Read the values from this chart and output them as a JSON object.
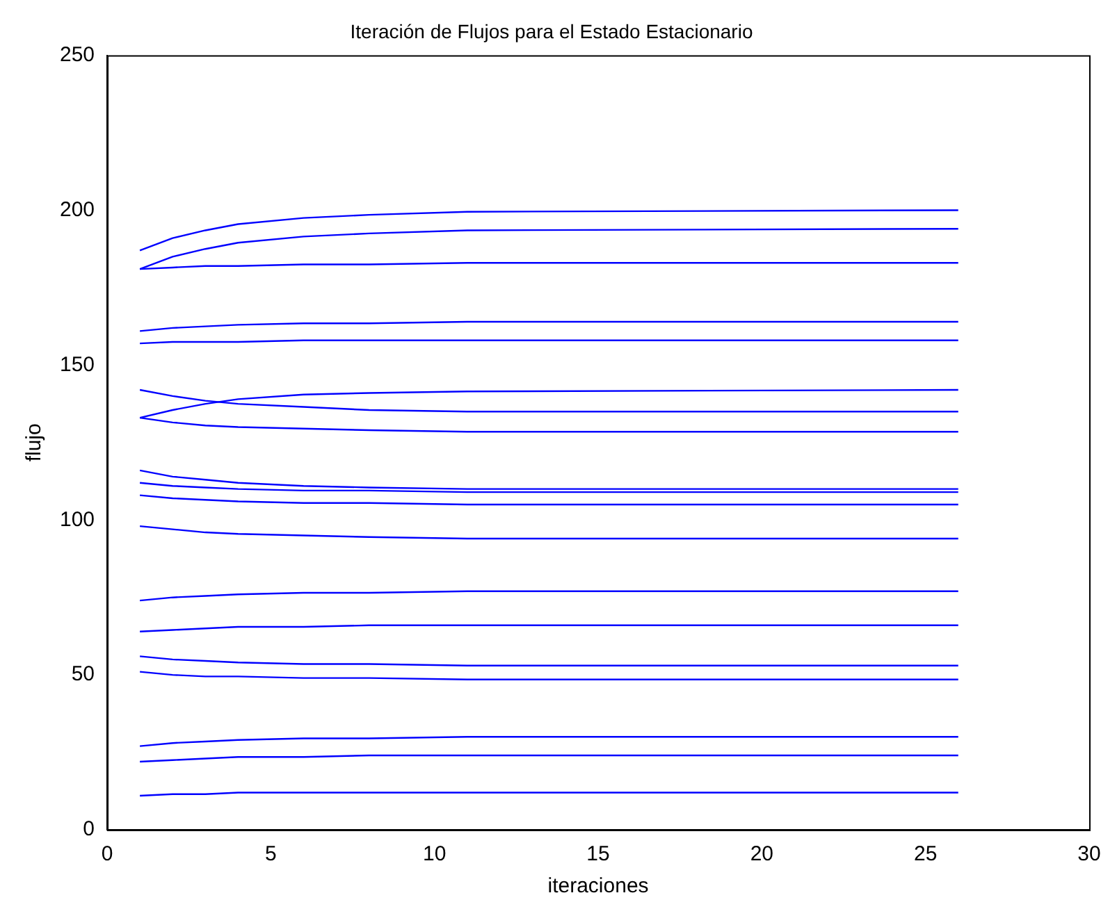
{
  "chart_data": {
    "type": "line",
    "title": "Iteración de Flujos para el Estado Estacionario",
    "xlabel": "iteraciones",
    "ylabel": "flujo",
    "x": [
      1,
      2,
      3,
      4,
      6,
      8,
      11,
      26
    ],
    "xlim": [
      0,
      30
    ],
    "xticks": [
      0,
      5,
      10,
      15,
      20,
      25,
      30
    ],
    "ylim": [
      0,
      250
    ],
    "yticks": [
      0,
      50,
      100,
      150,
      200,
      250
    ],
    "grid": false,
    "legend": false,
    "marker": "none",
    "line_style": "solid",
    "series": [
      {
        "color": "#0000ff",
        "values": [
          187,
          191,
          193.5,
          195.5,
          197.5,
          198.5,
          199.5,
          200
        ]
      },
      {
        "color": "#0000ff",
        "values": [
          181,
          185,
          187.5,
          189.5,
          191.5,
          192.5,
          193.5,
          194
        ]
      },
      {
        "color": "#0000ff",
        "values": [
          181,
          181.5,
          182,
          182,
          182.5,
          182.5,
          183,
          183
        ]
      },
      {
        "color": "#0000ff",
        "values": [
          161,
          162,
          162.5,
          163,
          163.5,
          163.5,
          164,
          164
        ]
      },
      {
        "color": "#0000ff",
        "values": [
          157,
          157.5,
          157.5,
          157.5,
          158,
          158,
          158,
          158
        ]
      },
      {
        "color": "#0000ff",
        "values": [
          133,
          135.5,
          137.5,
          139,
          140.5,
          141,
          141.5,
          142
        ]
      },
      {
        "color": "#0000ff",
        "values": [
          142,
          140,
          138.5,
          137.5,
          136.5,
          135.5,
          135,
          135
        ]
      },
      {
        "color": "#0000ff",
        "values": [
          133,
          131.5,
          130.5,
          130,
          129.5,
          129,
          128.5,
          128.5
        ]
      },
      {
        "color": "#0000ff",
        "values": [
          116,
          114,
          113,
          112,
          111,
          110.5,
          110,
          110
        ]
      },
      {
        "color": "#0000ff",
        "values": [
          112,
          111,
          110.5,
          110,
          109.5,
          109.5,
          109,
          109
        ]
      },
      {
        "color": "#0000ff",
        "values": [
          108,
          107,
          106.5,
          106,
          105.5,
          105.5,
          105,
          105
        ]
      },
      {
        "color": "#0000ff",
        "values": [
          98,
          97,
          96,
          95.5,
          95,
          94.5,
          94,
          94
        ]
      },
      {
        "color": "#0000ff",
        "values": [
          74,
          75,
          75.5,
          76,
          76.5,
          76.5,
          77,
          77
        ]
      },
      {
        "color": "#0000ff",
        "values": [
          64,
          64.5,
          65,
          65.5,
          65.5,
          66,
          66,
          66
        ]
      },
      {
        "color": "#0000ff",
        "values": [
          56,
          55,
          54.5,
          54,
          53.5,
          53.5,
          53,
          53
        ]
      },
      {
        "color": "#0000ff",
        "values": [
          51,
          50,
          49.5,
          49.5,
          49,
          49,
          48.5,
          48.5
        ]
      },
      {
        "color": "#0000ff",
        "values": [
          27,
          28,
          28.5,
          29,
          29.5,
          29.5,
          30,
          30
        ]
      },
      {
        "color": "#0000ff",
        "values": [
          22,
          22.5,
          23,
          23.5,
          23.5,
          24,
          24,
          24
        ]
      },
      {
        "color": "#0000ff",
        "values": [
          11,
          11.5,
          11.5,
          12,
          12,
          12,
          12,
          12
        ]
      }
    ]
  }
}
